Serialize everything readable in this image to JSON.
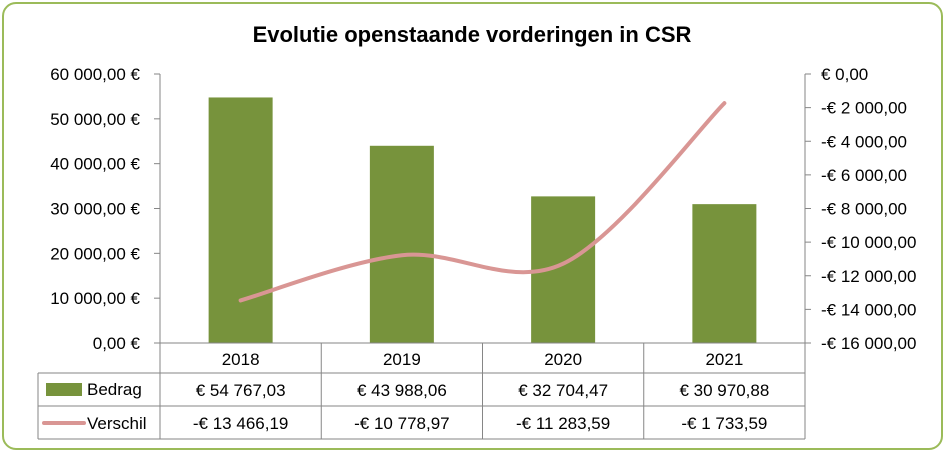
{
  "chart_data": {
    "type": "bar",
    "title": "Evolutie openstaande vorderingen in CSR",
    "categories": [
      "2018",
      "2019",
      "2020",
      "2021"
    ],
    "series": [
      {
        "name": "Bedrag",
        "type": "bar",
        "axis": "left",
        "color": "#77933c",
        "values": [
          54767.03,
          43988.06,
          32704.47,
          30970.88
        ],
        "labels": [
          "€ 54 767,03",
          "€ 43 988,06",
          "€ 32 704,47",
          "€ 30 970,88"
        ]
      },
      {
        "name": "Verschil",
        "type": "line",
        "axis": "right",
        "color": "#d99694",
        "values": [
          -13466.19,
          -10778.97,
          -11283.59,
          -1733.59
        ],
        "labels": [
          "-€ 13 466,19",
          "-€ 10 778,97",
          "-€ 11 283,59",
          "-€ 1 733,59"
        ]
      }
    ],
    "left_axis": {
      "ylim": [
        0,
        60000
      ],
      "ticks": [
        60000,
        50000,
        40000,
        30000,
        20000,
        10000,
        0
      ],
      "tick_labels": [
        "60 000,00 €",
        "50 000,00 €",
        "40 000,00 €",
        "30 000,00 €",
        "20 000,00 €",
        "10 000,00 €",
        "0,00 €"
      ]
    },
    "right_axis": {
      "ylim": [
        -16000,
        0
      ],
      "ticks": [
        0,
        -2000,
        -4000,
        -6000,
        -8000,
        -10000,
        -12000,
        -14000,
        -16000
      ],
      "tick_labels": [
        "€ 0,00",
        "-€ 2 000,00",
        "-€ 4 000,00",
        "-€ 6 000,00",
        "-€ 8 000,00",
        "-€ 10 000,00",
        "-€ 12 000,00",
        "-€ 14 000,00",
        "-€ 16 000,00"
      ]
    },
    "grid": false,
    "legend": "data-table"
  }
}
